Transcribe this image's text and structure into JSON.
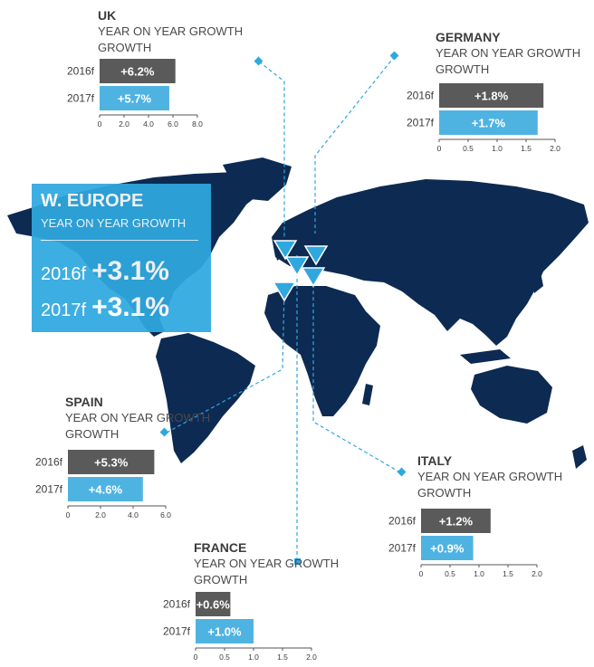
{
  "colors": {
    "navy": "#0d2a52",
    "accent": "#2fa8df",
    "bar_2016": "#5a5a5a",
    "bar_2017": "#4fb3e2",
    "text": "#3c3c3c"
  },
  "summary": {
    "title": "W. EUROPE",
    "subtitle": "YEAR ON YEAR GROWTH",
    "rows": [
      {
        "year": "2016f",
        "value": "+3.1%"
      },
      {
        "year": "2017f",
        "value": "+3.1%"
      }
    ]
  },
  "chart_data": [
    {
      "type": "bar",
      "orientation": "horizontal",
      "title": "UK",
      "subtitle": "YEAR ON YEAR GROWTH",
      "categories": [
        "2016f",
        "2017f"
      ],
      "values": [
        6.2,
        5.7
      ],
      "labels": [
        "+6.2%",
        "+5.7%"
      ],
      "xlim": [
        0,
        8
      ],
      "ticks": [
        "0",
        "2.0",
        "4.0",
        "6.0",
        "8.0"
      ]
    },
    {
      "type": "bar",
      "orientation": "horizontal",
      "title": "GERMANY",
      "subtitle": "YEAR ON YEAR GROWTH",
      "categories": [
        "2016f",
        "2017f"
      ],
      "values": [
        1.8,
        1.7
      ],
      "labels": [
        "+1.8%",
        "+1.7%"
      ],
      "xlim": [
        0,
        2
      ],
      "ticks": [
        "0",
        "0.5",
        "1.0",
        "1.5",
        "2.0"
      ]
    },
    {
      "type": "bar",
      "orientation": "horizontal",
      "title": "SPAIN",
      "subtitle": "YEAR ON YEAR GROWTH",
      "categories": [
        "2016f",
        "2017f"
      ],
      "values": [
        5.3,
        4.6
      ],
      "labels": [
        "+5.3%",
        "+4.6%"
      ],
      "xlim": [
        0,
        6
      ],
      "ticks": [
        "0",
        "2.0",
        "4.0",
        "6.0"
      ]
    },
    {
      "type": "bar",
      "orientation": "horizontal",
      "title": "ITALY",
      "subtitle": "YEAR ON YEAR GROWTH",
      "categories": [
        "2016f",
        "2017f"
      ],
      "values": [
        1.2,
        0.9
      ],
      "labels": [
        "+1.2%",
        "+0.9%"
      ],
      "xlim": [
        0,
        2
      ],
      "ticks": [
        "0",
        "0.5",
        "1.0",
        "1.5",
        "2.0"
      ]
    },
    {
      "type": "bar",
      "orientation": "horizontal",
      "title": "FRANCE",
      "subtitle": "YEAR ON YEAR GROWTH",
      "categories": [
        "2016f",
        "2017f"
      ],
      "values": [
        0.6,
        1.0
      ],
      "labels": [
        "+0.6%",
        "+1.0%"
      ],
      "xlim": [
        0,
        2
      ],
      "ticks": [
        "0",
        "0.5",
        "1.0",
        "1.5",
        "2.0"
      ]
    }
  ]
}
